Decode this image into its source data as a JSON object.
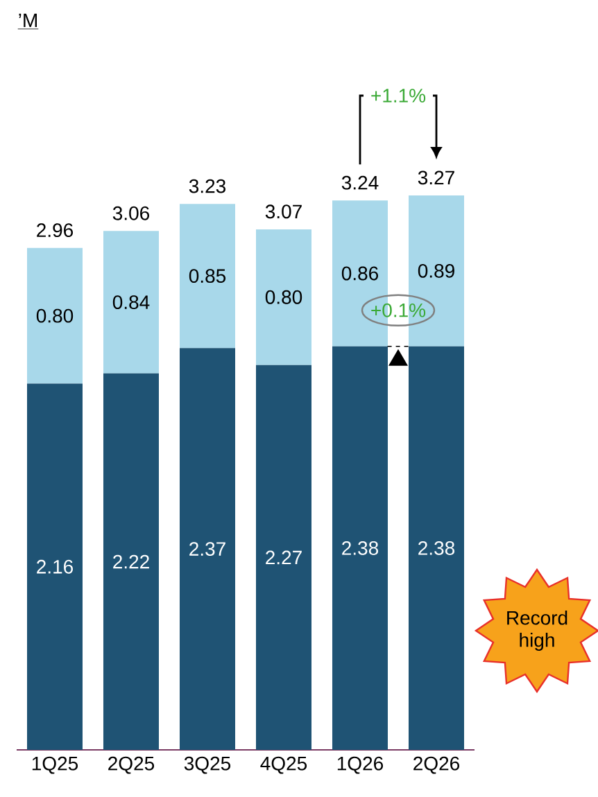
{
  "chart_data": {
    "type": "bar",
    "stacked": true,
    "categories": [
      "1Q25",
      "2Q25",
      "3Q25",
      "4Q25",
      "1Q26",
      "2Q26"
    ],
    "series": [
      {
        "color": "#1f5374",
        "values": [
          2.16,
          2.22,
          2.37,
          2.27,
          2.38,
          2.38
        ],
        "value_labels": [
          "2.16",
          "2.22",
          "2.37",
          "2.27",
          "2.38",
          "2.38"
        ]
      },
      {
        "color": "#a8d8ea",
        "values": [
          0.8,
          0.84,
          0.85,
          0.8,
          0.86,
          0.89
        ],
        "value_labels": [
          "0.80",
          "0.84",
          "0.85",
          "0.80",
          "0.86",
          "0.89"
        ]
      }
    ],
    "totals": [
      "2.96",
      "3.06",
      "3.23",
      "3.07",
      "3.24",
      "3.27"
    ],
    "annotations": [
      "’M",
      "+1.1%",
      "+0.1%",
      "Record high"
    ]
  }
}
